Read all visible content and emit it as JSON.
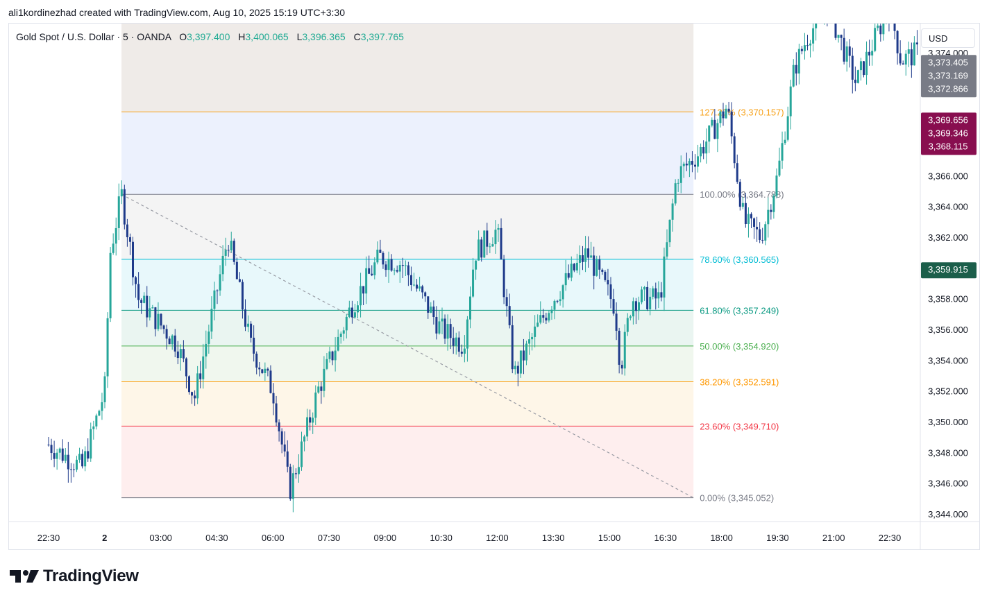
{
  "attribution": "ali1kordinezhad created with TradingView.com, Aug 10, 2025 15:19 UTC+3:30",
  "legend": {
    "symbol": "Gold Spot / U.S. Dollar · 5 · OANDA",
    "open_label": "O",
    "open": "3,397.400",
    "high_label": "H",
    "high": "3,400.065",
    "low_label": "L",
    "low": "3,396.365",
    "close_label": "C",
    "close": "3,397.765"
  },
  "currency": "USD",
  "brand": "TradingView",
  "chart_data": {
    "type": "candlestick",
    "y_axis": {
      "ticks": [
        3344,
        3346,
        3348,
        3350,
        3352,
        3354,
        3356,
        3358,
        3362,
        3364,
        3366,
        3374
      ],
      "tick_labels": [
        "3,344.000",
        "3,346.000",
        "3,348.000",
        "3,350.000",
        "3,352.000",
        "3,354.000",
        "3,356.000",
        "3,358.000",
        "3,362.000",
        "3,364.000",
        "3,366.000",
        "3,374.000"
      ],
      "range": [
        3343.5,
        3375.9
      ]
    },
    "x_axis": {
      "labels": [
        "22:30",
        "2",
        "03:00",
        "04:30",
        "06:00",
        "07:30",
        "09:00",
        "10:30",
        "12:00",
        "13:30",
        "15:00",
        "16:30",
        "18:00",
        "19:30",
        "21:00",
        "22:30"
      ]
    },
    "fibonacci": {
      "start": {
        "label_index": 1.3,
        "price": 3364.788
      },
      "end": {
        "label_index": 11.5,
        "price": 3345.052
      },
      "levels": [
        {
          "label": "127.20% (3,370.157)",
          "price": 3370.157,
          "color": "#f7a21b"
        },
        {
          "label": "100.00% (3,364.788)",
          "price": 3364.788,
          "color": "#787b86"
        },
        {
          "label": "78.60% (3,360.565)",
          "price": 3360.565,
          "color": "#00bcd4"
        },
        {
          "label": "61.80% (3,357.249)",
          "price": 3357.249,
          "color": "#089981"
        },
        {
          "label": "50.00% (3,354.920)",
          "price": 3354.92,
          "color": "#4caf50"
        },
        {
          "label": "38.20% (3,352.591)",
          "price": 3352.591,
          "color": "#ff9800"
        },
        {
          "label": "23.60% (3,349.710)",
          "price": 3349.71,
          "color": "#f23645"
        },
        {
          "label": "0.00% (3,345.052)",
          "price": 3345.052,
          "color": "#787b86"
        }
      ]
    },
    "price_tags": [
      {
        "price": 3373.405,
        "label": "3,373.405",
        "color": "#787b86"
      },
      {
        "price": 3373.169,
        "label": "3,373.169",
        "color": "#787b86"
      },
      {
        "price": 3372.866,
        "label": "3,372.866",
        "color": "#787b86"
      },
      {
        "price": 3369.656,
        "label": "3,369.656",
        "color": "#880e4f"
      },
      {
        "price": 3369.346,
        "label": "3,369.346",
        "color": "#880e4f"
      },
      {
        "price": 3368.115,
        "label": "3,368.115",
        "color": "#880e4f"
      },
      {
        "price": 3359.915,
        "label": "3,359.915",
        "color": "#1b5e4a"
      }
    ],
    "up_color": "#26a69a",
    "down_color": "#1e3a8a",
    "keypoints": [
      [
        0,
        3348.5
      ],
      [
        0.6,
        3347.0
      ],
      [
        1.0,
        3352.0
      ],
      [
        1.1,
        3361.0
      ],
      [
        1.3,
        3364.8
      ],
      [
        1.6,
        3358.0
      ],
      [
        2.3,
        3355.0
      ],
      [
        2.6,
        3351.5
      ],
      [
        3.2,
        3362.0
      ],
      [
        3.6,
        3355.0
      ],
      [
        4.0,
        3352.0
      ],
      [
        4.3,
        3345.5
      ],
      [
        4.8,
        3352.0
      ],
      [
        5.4,
        3357.5
      ],
      [
        5.9,
        3360.7
      ],
      [
        6.3,
        3360.3
      ],
      [
        7.0,
        3356.0
      ],
      [
        7.4,
        3355.0
      ],
      [
        7.6,
        3361.0
      ],
      [
        8.0,
        3362.5
      ],
      [
        8.3,
        3353.0
      ],
      [
        8.7,
        3356.0
      ],
      [
        9.0,
        3358.0
      ],
      [
        9.6,
        3361.0
      ],
      [
        10.1,
        3357.5
      ],
      [
        10.2,
        3353.5
      ],
      [
        10.4,
        3358.0
      ],
      [
        10.9,
        3358.0
      ],
      [
        11.2,
        3366.0
      ],
      [
        11.6,
        3367.5
      ],
      [
        12.1,
        3370.5
      ],
      [
        12.4,
        3363.0
      ],
      [
        12.7,
        3362.0
      ],
      [
        13.0,
        3366.0
      ],
      [
        13.3,
        3373.0
      ],
      [
        13.55,
        3375.2
      ],
      [
        13.9,
        3377.0
      ],
      [
        14.4,
        3372.0
      ],
      [
        14.8,
        3375.5
      ],
      [
        15.0,
        3377.0
      ],
      [
        15.2,
        3373.5
      ],
      [
        15.5,
        3374.0
      ],
      [
        16.0,
        3372.0
      ],
      [
        16.6,
        3373.0
      ],
      [
        17.0,
        3375.0
      ],
      [
        17.4,
        3376.0
      ],
      [
        17.6,
        3375.5
      ],
      [
        17.8,
        3375.8
      ]
    ]
  }
}
